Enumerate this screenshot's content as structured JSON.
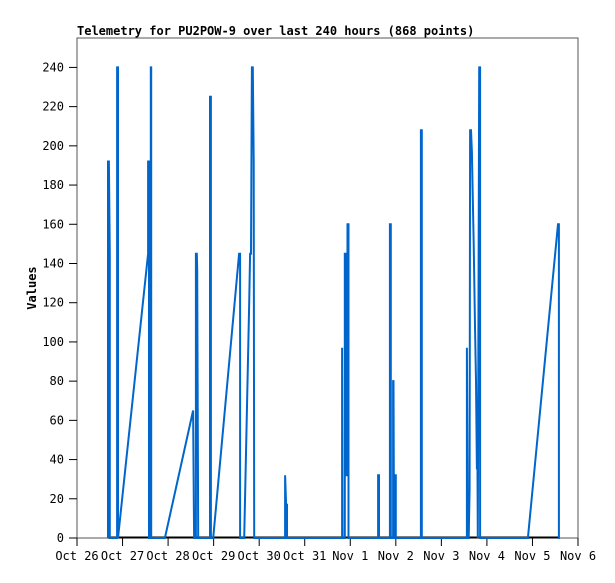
{
  "chart_data": {
    "type": "line",
    "title": "Telemetry for PU2POW-9 over last 240 hours (868 points)",
    "xlabel": "",
    "ylabel": "Values",
    "xlim": [
      0,
      11
    ],
    "ylim": [
      0,
      255
    ],
    "x_units": "days since Oct 26 00:00",
    "x_ticks": [
      {
        "value": 0,
        "label": "Oct 26"
      },
      {
        "value": 1,
        "label": "Oct 27"
      },
      {
        "value": 2,
        "label": "Oct 28"
      },
      {
        "value": 3,
        "label": "Oct 29"
      },
      {
        "value": 4,
        "label": "Oct 30"
      },
      {
        "value": 5,
        "label": "Oct 31"
      },
      {
        "value": 6,
        "label": "Nov 1"
      },
      {
        "value": 7,
        "label": "Nov 2"
      },
      {
        "value": 8,
        "label": "Nov 3"
      },
      {
        "value": 9,
        "label": "Nov 4"
      },
      {
        "value": 10,
        "label": "Nov 5"
      },
      {
        "value": 11,
        "label": "Nov 6"
      }
    ],
    "y_ticks": [
      0,
      20,
      40,
      60,
      80,
      100,
      120,
      140,
      160,
      180,
      200,
      220,
      240
    ],
    "grid": false,
    "series": [
      {
        "name": "Values",
        "color": "#0066cc",
        "points": [
          [
            0.68,
            0
          ],
          [
            0.68,
            192
          ],
          [
            0.7,
            192
          ],
          [
            0.72,
            145
          ],
          [
            0.72,
            0
          ],
          [
            0.88,
            0
          ],
          [
            0.88,
            240
          ],
          [
            0.9,
            240
          ],
          [
            0.9,
            0
          ],
          [
            1.56,
            145
          ],
          [
            1.56,
            192
          ],
          [
            1.58,
            192
          ],
          [
            1.58,
            0
          ],
          [
            1.62,
            0
          ],
          [
            1.62,
            240
          ],
          [
            1.63,
            240
          ],
          [
            1.63,
            0
          ],
          [
            1.93,
            0
          ],
          [
            2.55,
            65
          ],
          [
            2.57,
            0
          ],
          [
            2.61,
            0
          ],
          [
            2.61,
            145
          ],
          [
            2.63,
            145
          ],
          [
            2.64,
            137
          ],
          [
            2.66,
            0
          ],
          [
            2.92,
            0
          ],
          [
            2.92,
            225
          ],
          [
            2.94,
            225
          ],
          [
            2.94,
            0
          ],
          [
            2.99,
            0
          ],
          [
            3.56,
            145
          ],
          [
            3.58,
            145
          ],
          [
            3.58,
            0
          ],
          [
            3.67,
            0
          ],
          [
            3.78,
            120
          ],
          [
            3.8,
            145
          ],
          [
            3.82,
            145
          ],
          [
            3.84,
            240
          ],
          [
            3.86,
            240
          ],
          [
            3.88,
            192
          ],
          [
            3.89,
            0
          ],
          [
            4.57,
            0
          ],
          [
            4.57,
            32
          ],
          [
            4.59,
            17
          ],
          [
            4.61,
            17
          ],
          [
            4.61,
            0
          ],
          [
            5.82,
            0
          ],
          [
            5.82,
            97
          ],
          [
            5.83,
            0
          ],
          [
            5.88,
            0
          ],
          [
            5.88,
            145
          ],
          [
            5.9,
            145
          ],
          [
            5.91,
            32
          ],
          [
            5.93,
            32
          ],
          [
            5.94,
            160
          ],
          [
            5.96,
            160
          ],
          [
            5.96,
            0
          ],
          [
            6.61,
            0
          ],
          [
            6.61,
            32
          ],
          [
            6.63,
            32
          ],
          [
            6.63,
            0
          ],
          [
            6.87,
            0
          ],
          [
            6.87,
            160
          ],
          [
            6.89,
            160
          ],
          [
            6.89,
            0
          ],
          [
            6.94,
            0
          ],
          [
            6.94,
            80
          ],
          [
            6.95,
            80
          ],
          [
            6.96,
            0
          ],
          [
            6.98,
            0
          ],
          [
            6.98,
            32
          ],
          [
            7.0,
            32
          ],
          [
            7.0,
            0
          ],
          [
            7.55,
            0
          ],
          [
            7.55,
            208
          ],
          [
            7.57,
            208
          ],
          [
            7.57,
            0
          ],
          [
            8.56,
            0
          ],
          [
            8.56,
            97
          ],
          [
            8.58,
            0
          ],
          [
            8.6,
            0
          ],
          [
            8.62,
            25
          ],
          [
            8.63,
            208
          ],
          [
            8.65,
            208
          ],
          [
            8.67,
            197
          ],
          [
            8.69,
            173
          ],
          [
            8.71,
            150
          ],
          [
            8.74,
            105
          ],
          [
            8.76,
            80
          ],
          [
            8.78,
            35
          ],
          [
            8.79,
            58
          ],
          [
            8.8,
            0
          ],
          [
            8.83,
            240
          ],
          [
            8.85,
            240
          ],
          [
            8.85,
            0
          ],
          [
            9.9,
            0
          ],
          [
            10.56,
            160
          ],
          [
            10.58,
            160
          ],
          [
            10.58,
            0
          ],
          [
            10.6,
            0
          ]
        ]
      }
    ]
  }
}
